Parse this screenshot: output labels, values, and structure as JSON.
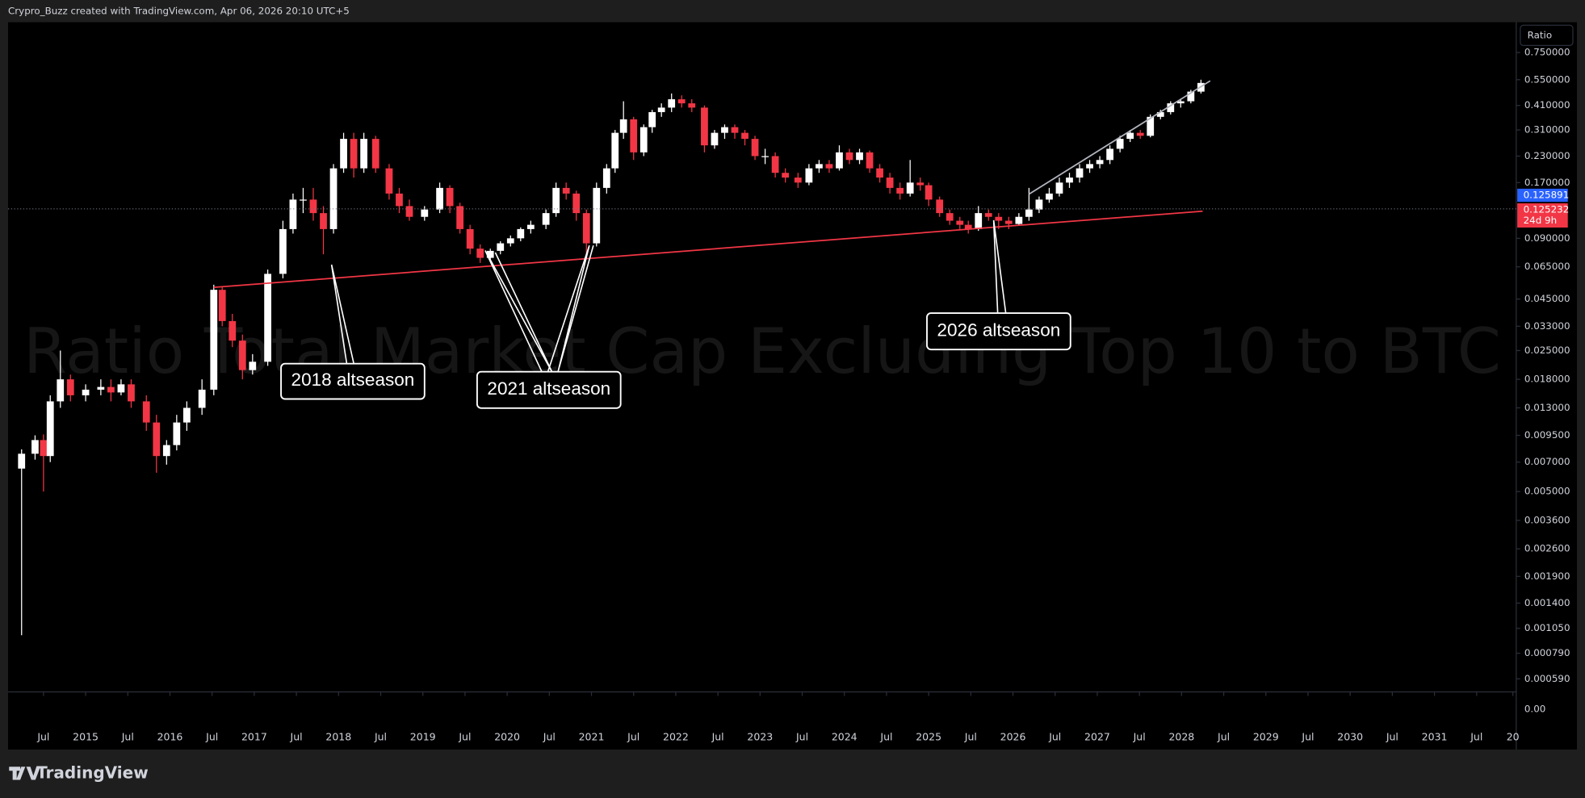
{
  "header": {
    "attribution": "Crypro_Buzz created with TradingView.com, Apr 06, 2026 20:10 UTC+5"
  },
  "toolbar": {
    "scale_button": "Ratio"
  },
  "footer": {
    "brand": "TradingView"
  },
  "chart_data": {
    "type": "candlestick",
    "title": "Ratio Total Market Cap Excluding Top 10 to BTC",
    "log_scale": true,
    "up_color": "#ffffff",
    "down_color": "#f23645",
    "x": [
      2014.24,
      2014.4,
      2014.5,
      2014.58,
      2014.7,
      2014.82,
      2015.0,
      2015.18,
      2015.3,
      2015.42,
      2015.54,
      2015.72,
      2015.84,
      2015.96,
      2016.08,
      2016.2,
      2016.38,
      2016.52,
      2016.62,
      2016.74,
      2016.86,
      2016.98,
      2017.16,
      2017.34,
      2017.46,
      2017.58,
      2017.7,
      2017.82,
      2017.94,
      2018.06,
      2018.18,
      2018.3,
      2018.44,
      2018.6,
      2018.72,
      2018.84,
      2019.02,
      2019.2,
      2019.32,
      2019.44,
      2019.56,
      2019.68,
      2019.8,
      2019.92,
      2020.04,
      2020.16,
      2020.28,
      2020.46,
      2020.58,
      2020.7,
      2020.82,
      2020.94,
      2021.06,
      2021.18,
      2021.28,
      2021.38,
      2021.5,
      2021.62,
      2021.72,
      2021.83,
      2021.95,
      2022.07,
      2022.19,
      2022.34,
      2022.46,
      2022.58,
      2022.7,
      2022.82,
      2022.94,
      2023.06,
      2023.18,
      2023.3,
      2023.45,
      2023.58,
      2023.7,
      2023.82,
      2023.94,
      2024.06,
      2024.18,
      2024.3,
      2024.42,
      2024.54,
      2024.66,
      2024.78,
      2024.9,
      2025.0,
      2025.13,
      2025.25,
      2025.37,
      2025.47,
      2025.59,
      2025.71,
      2025.83,
      2025.95,
      2026.07,
      2026.19,
      2026.31,
      2026.43,
      2026.55,
      2026.67,
      2026.79,
      2026.91,
      2027.03,
      2027.15,
      2027.27,
      2027.39,
      2027.51,
      2027.63,
      2027.75,
      2027.87,
      2027.99,
      2028.11,
      2028.23
    ],
    "open": [
      0.0065,
      0.0077,
      0.009,
      0.0075,
      0.014,
      0.018,
      0.015,
      0.016,
      0.0165,
      0.0155,
      0.017,
      0.014,
      0.011,
      0.0075,
      0.0085,
      0.011,
      0.013,
      0.016,
      0.05,
      0.035,
      0.028,
      0.02,
      0.022,
      0.06,
      0.1,
      0.14,
      0.14,
      0.12,
      0.1,
      0.2,
      0.28,
      0.2,
      0.28,
      0.2,
      0.15,
      0.13,
      0.115,
      0.125,
      0.16,
      0.13,
      0.1,
      0.08,
      0.072,
      0.078,
      0.085,
      0.09,
      0.1,
      0.105,
      0.12,
      0.16,
      0.15,
      0.12,
      0.085,
      0.16,
      0.2,
      0.3,
      0.35,
      0.24,
      0.32,
      0.38,
      0.4,
      0.44,
      0.42,
      0.4,
      0.26,
      0.3,
      0.32,
      0.3,
      0.28,
      0.23,
      0.23,
      0.19,
      0.18,
      0.17,
      0.2,
      0.21,
      0.2,
      0.24,
      0.22,
      0.24,
      0.2,
      0.18,
      0.16,
      0.15,
      0.17,
      0.165,
      0.14,
      0.12,
      0.11,
      0.105,
      0.1,
      0.12,
      0.115,
      0.11,
      0.106,
      0.115,
      0.125,
      0.14,
      0.15,
      0.17,
      0.18,
      0.2,
      0.21,
      0.22,
      0.25,
      0.28,
      0.3,
      0.29,
      0.36,
      0.38,
      0.42,
      0.43,
      0.48
    ],
    "high": [
      0.0081,
      0.0095,
      0.0096,
      0.015,
      0.025,
      0.019,
      0.017,
      0.018,
      0.018,
      0.018,
      0.018,
      0.015,
      0.012,
      0.009,
      0.012,
      0.014,
      0.018,
      0.053,
      0.052,
      0.038,
      0.03,
      0.024,
      0.063,
      0.11,
      0.15,
      0.16,
      0.16,
      0.13,
      0.21,
      0.3,
      0.3,
      0.3,
      0.29,
      0.21,
      0.16,
      0.14,
      0.13,
      0.17,
      0.165,
      0.135,
      0.105,
      0.084,
      0.08,
      0.087,
      0.093,
      0.102,
      0.11,
      0.125,
      0.17,
      0.17,
      0.155,
      0.125,
      0.17,
      0.21,
      0.31,
      0.43,
      0.36,
      0.33,
      0.39,
      0.42,
      0.47,
      0.46,
      0.44,
      0.41,
      0.31,
      0.33,
      0.33,
      0.31,
      0.29,
      0.25,
      0.24,
      0.2,
      0.19,
      0.21,
      0.22,
      0.22,
      0.26,
      0.25,
      0.25,
      0.245,
      0.21,
      0.19,
      0.17,
      0.22,
      0.18,
      0.17,
      0.145,
      0.125,
      0.115,
      0.11,
      0.13,
      0.125,
      0.12,
      0.115,
      0.12,
      0.16,
      0.145,
      0.16,
      0.18,
      0.19,
      0.21,
      0.22,
      0.23,
      0.26,
      0.29,
      0.31,
      0.31,
      0.37,
      0.39,
      0.43,
      0.44,
      0.49,
      0.55
    ],
    "low": [
      0.00097,
      0.0072,
      0.005,
      0.007,
      0.013,
      0.014,
      0.014,
      0.015,
      0.014,
      0.015,
      0.013,
      0.01,
      0.0062,
      0.0068,
      0.008,
      0.01,
      0.012,
      0.015,
      0.033,
      0.026,
      0.018,
      0.019,
      0.021,
      0.057,
      0.095,
      0.12,
      0.11,
      0.075,
      0.095,
      0.19,
      0.18,
      0.19,
      0.19,
      0.14,
      0.12,
      0.11,
      0.11,
      0.12,
      0.12,
      0.095,
      0.075,
      0.068,
      0.07,
      0.075,
      0.082,
      0.087,
      0.095,
      0.1,
      0.115,
      0.14,
      0.11,
      0.075,
      0.082,
      0.15,
      0.19,
      0.28,
      0.22,
      0.23,
      0.3,
      0.36,
      0.38,
      0.4,
      0.38,
      0.24,
      0.25,
      0.28,
      0.28,
      0.26,
      0.22,
      0.21,
      0.18,
      0.17,
      0.16,
      0.165,
      0.19,
      0.19,
      0.195,
      0.21,
      0.21,
      0.19,
      0.17,
      0.15,
      0.14,
      0.145,
      0.155,
      0.13,
      0.115,
      0.105,
      0.1,
      0.095,
      0.098,
      0.11,
      0.1,
      0.1,
      0.104,
      0.11,
      0.12,
      0.135,
      0.145,
      0.16,
      0.17,
      0.19,
      0.2,
      0.21,
      0.24,
      0.27,
      0.28,
      0.285,
      0.35,
      0.37,
      0.4,
      0.42,
      0.47
    ],
    "close": [
      0.0077,
      0.009,
      0.0075,
      0.014,
      0.018,
      0.015,
      0.016,
      0.0165,
      0.0155,
      0.017,
      0.014,
      0.011,
      0.0075,
      0.0085,
      0.011,
      0.013,
      0.016,
      0.05,
      0.035,
      0.028,
      0.02,
      0.022,
      0.06,
      0.1,
      0.14,
      0.14,
      0.12,
      0.1,
      0.2,
      0.28,
      0.2,
      0.28,
      0.2,
      0.15,
      0.13,
      0.115,
      0.125,
      0.16,
      0.13,
      0.1,
      0.08,
      0.072,
      0.078,
      0.085,
      0.09,
      0.1,
      0.105,
      0.12,
      0.16,
      0.15,
      0.12,
      0.085,
      0.16,
      0.2,
      0.3,
      0.35,
      0.24,
      0.32,
      0.38,
      0.4,
      0.44,
      0.42,
      0.4,
      0.26,
      0.3,
      0.32,
      0.3,
      0.28,
      0.23,
      0.23,
      0.19,
      0.18,
      0.17,
      0.2,
      0.21,
      0.2,
      0.24,
      0.22,
      0.24,
      0.2,
      0.18,
      0.16,
      0.15,
      0.17,
      0.165,
      0.14,
      0.12,
      0.11,
      0.105,
      0.1,
      0.12,
      0.115,
      0.11,
      0.106,
      0.115,
      0.125,
      0.14,
      0.15,
      0.17,
      0.18,
      0.2,
      0.21,
      0.22,
      0.25,
      0.28,
      0.3,
      0.29,
      0.36,
      0.38,
      0.42,
      0.43,
      0.48,
      0.53
    ],
    "trendlines": [
      {
        "color": "#f23645",
        "x": [
          2016.52,
          2028.25
        ],
        "y": [
          0.0514,
          0.1227
        ]
      },
      {
        "color": "#b2b5be",
        "x": [
          2026.19,
          2028.34
        ],
        "y": [
          0.149,
          0.543
        ]
      }
    ],
    "last_price": {
      "value": 0.125891,
      "label": "0.125891",
      "color": "#2962ff"
    },
    "close_price": {
      "value": 0.125232,
      "label": "0.125232",
      "countdown": "24d 9h",
      "color": "#f23645"
    },
    "annotations": [
      {
        "text": "2018 altseason"
      },
      {
        "text": "2021 altseason"
      },
      {
        "text": "2026 altseason"
      }
    ],
    "xlim": [
      2014.08,
      2031.97
    ],
    "ylim": [
      0.000508,
      1.06
    ],
    "xticks": [
      {
        "value": 2014.5,
        "label": "Jul"
      },
      2015,
      {
        "value": 2015.5,
        "label": "Jul"
      },
      2016,
      {
        "value": 2016.5,
        "label": "Jul"
      },
      2017,
      {
        "value": 2017.5,
        "label": "Jul"
      },
      2018,
      {
        "value": 2018.5,
        "label": "Jul"
      },
      2019,
      {
        "value": 2019.5,
        "label": "Jul"
      },
      2020,
      {
        "value": 2020.5,
        "label": "Jul"
      },
      2021,
      {
        "value": 2021.5,
        "label": "Jul"
      },
      2022,
      {
        "value": 2022.5,
        "label": "Jul"
      },
      2023,
      {
        "value": 2023.5,
        "label": "Jul"
      },
      2024,
      {
        "value": 2024.5,
        "label": "Jul"
      },
      2025,
      {
        "value": 2025.5,
        "label": "Jul"
      },
      2026,
      {
        "value": 2026.5,
        "label": "Jul"
      },
      2027,
      {
        "value": 2027.5,
        "label": "Jul"
      },
      2028,
      {
        "value": 2028.5,
        "label": "Jul"
      },
      2029,
      {
        "value": 2029.5,
        "label": "Jul"
      },
      2030,
      {
        "value": 2030.5,
        "label": "Jul"
      },
      2031,
      {
        "value": 2031.5,
        "label": "Jul"
      },
      {
        "value": 2031.93,
        "label": "20"
      }
    ],
    "yticks": [
      {
        "value": 0.75,
        "label": "0.750000"
      },
      {
        "value": 0.55,
        "label": "0.550000"
      },
      {
        "value": 0.41,
        "label": "0.410000"
      },
      {
        "value": 0.31,
        "label": "0.310000"
      },
      {
        "value": 0.23,
        "label": "0.230000"
      },
      {
        "value": 0.17,
        "label": "0.170000"
      },
      {
        "value": 0.09,
        "label": "0.090000"
      },
      {
        "value": 0.065,
        "label": "0.065000"
      },
      {
        "value": 0.045,
        "label": "0.045000"
      },
      {
        "value": 0.033,
        "label": "0.033000"
      },
      {
        "value": 0.025,
        "label": "0.025000"
      },
      {
        "value": 0.018,
        "label": "0.018000"
      },
      {
        "value": 0.013,
        "label": "0.013000"
      },
      {
        "value": 0.0095,
        "label": "0.009500"
      },
      {
        "value": 0.007,
        "label": "0.007000"
      },
      {
        "value": 0.005,
        "label": "0.005000"
      },
      {
        "value": 0.0036,
        "label": "0.003600"
      },
      {
        "value": 0.0026,
        "label": "0.002600"
      },
      {
        "value": 0.0019,
        "label": "0.001900"
      },
      {
        "value": 0.0014,
        "label": "0.001400"
      },
      {
        "value": 0.00105,
        "label": "0.001050"
      },
      {
        "value": 0.00079,
        "label": "0.000790"
      },
      {
        "value": 0.00059,
        "label": "0.000590"
      }
    ],
    "price_axis_floor": "0.00"
  }
}
